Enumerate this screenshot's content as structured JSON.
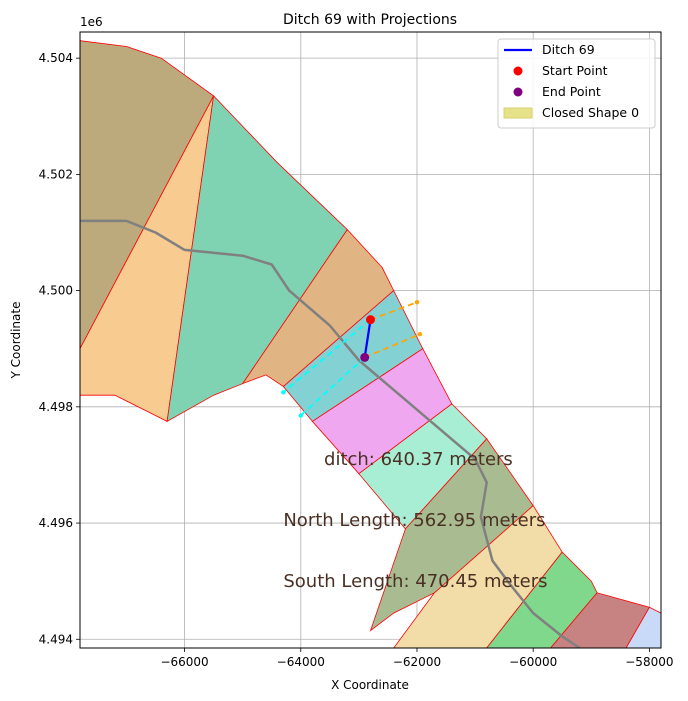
{
  "chart_data": {
    "type": "line",
    "title": "Ditch 69 with Projections",
    "xlabel": "X Coordinate",
    "ylabel": "Y Coordinate",
    "xlim": [
      -67800,
      -57800
    ],
    "ylim": [
      4493850,
      4504450
    ],
    "y_offset_label": "1e6",
    "grid": true,
    "legend_placement": "top-right",
    "x_ticks": [
      {
        "value": -66000,
        "label": "−66000"
      },
      {
        "value": -64000,
        "label": "−64000"
      },
      {
        "value": -62000,
        "label": "−62000"
      },
      {
        "value": -60000,
        "label": "−60000"
      },
      {
        "value": -58000,
        "label": "−58000"
      }
    ],
    "y_ticks": [
      {
        "value": 4494000,
        "label": "4.494"
      },
      {
        "value": 4496000,
        "label": "4.496"
      },
      {
        "value": 4498000,
        "label": "4.498"
      },
      {
        "value": 4500000,
        "label": "4.500"
      },
      {
        "value": 4502000,
        "label": "4.502"
      },
      {
        "value": 4504000,
        "label": "4.504"
      }
    ],
    "legend": [
      {
        "label": "Ditch 69",
        "kind": "line",
        "color": "#0000ff"
      },
      {
        "label": "Start Point",
        "kind": "point",
        "color": "#ff0000"
      },
      {
        "label": "End Point",
        "kind": "point",
        "color": "#800080"
      },
      {
        "label": "Closed Shape 0",
        "kind": "patch",
        "color": "#e6e28a"
      }
    ],
    "shapes": [
      {
        "color": "#bcaa7d",
        "points": [
          [
            -67800,
            4504300
          ],
          [
            -67000,
            4504200
          ],
          [
            -66400,
            4504000
          ],
          [
            -65500,
            4503350
          ],
          [
            -67800,
            4499000
          ]
        ]
      },
      {
        "color": "#f8cb91",
        "points": [
          [
            -65500,
            4503350
          ],
          [
            -67800,
            4499000
          ],
          [
            -67800,
            4498200
          ],
          [
            -67200,
            4498200
          ],
          [
            -66600,
            4497900
          ],
          [
            -66300,
            4497750
          ]
        ]
      },
      {
        "color": "#80d3b2",
        "points": [
          [
            -65500,
            4503350
          ],
          [
            -66300,
            4497750
          ],
          [
            -65500,
            4498200
          ],
          [
            -65000,
            4498400
          ],
          [
            -63200,
            4501050
          ],
          [
            -64400,
            4502200
          ]
        ]
      },
      {
        "color": "#e1b483",
        "points": [
          [
            -63200,
            4501050
          ],
          [
            -65000,
            4498400
          ],
          [
            -64600,
            4498550
          ],
          [
            -64300,
            4498350
          ],
          [
            -62400,
            4500000
          ],
          [
            -62600,
            4500400
          ]
        ]
      },
      {
        "color": "#83d1d3",
        "points": [
          [
            -64300,
            4498350
          ],
          [
            -62400,
            4500000
          ],
          [
            -61900,
            4499000
          ],
          [
            -63800,
            4497750
          ]
        ]
      },
      {
        "color": "#efa8f0",
        "points": [
          [
            -63800,
            4497750
          ],
          [
            -61900,
            4499000
          ],
          [
            -61400,
            4498050
          ],
          [
            -63000,
            4496850
          ]
        ]
      },
      {
        "color": "#a7eed4",
        "points": [
          [
            -63000,
            4496850
          ],
          [
            -61400,
            4498050
          ],
          [
            -60800,
            4497450
          ],
          [
            -62200,
            4495900
          ]
        ]
      },
      {
        "color": "#a9bc91",
        "points": [
          [
            -62200,
            4495900
          ],
          [
            -60800,
            4497450
          ],
          [
            -60000,
            4496300
          ],
          [
            -61000,
            4495350
          ],
          [
            -61700,
            4494800
          ],
          [
            -62400,
            4494450
          ],
          [
            -62800,
            4494150
          ]
        ]
      },
      {
        "color": "#f2dca7",
        "points": [
          [
            -61700,
            4494800
          ],
          [
            -60000,
            4496300
          ],
          [
            -59500,
            4495500
          ],
          [
            -60800,
            4493850
          ],
          [
            -62400,
            4493850
          ]
        ]
      },
      {
        "color": "#7fd88c",
        "points": [
          [
            -60800,
            4493850
          ],
          [
            -59500,
            4495500
          ],
          [
            -59000,
            4495000
          ],
          [
            -58900,
            4494800
          ],
          [
            -59700,
            4493850
          ]
        ]
      },
      {
        "color": "#c78381",
        "points": [
          [
            -59700,
            4493850
          ],
          [
            -58900,
            4494800
          ],
          [
            -58000,
            4494550
          ],
          [
            -58400,
            4493850
          ]
        ]
      },
      {
        "color": "#c8daf7",
        "points": [
          [
            -58400,
            4493850
          ],
          [
            -58000,
            4494550
          ],
          [
            -57800,
            4494450
          ],
          [
            -57800,
            4493850
          ]
        ]
      }
    ],
    "road": {
      "color": "#808080",
      "points": [
        [
          -67800,
          4501200
        ],
        [
          -67000,
          4501200
        ],
        [
          -66500,
          4501000
        ],
        [
          -66000,
          4500700
        ],
        [
          -65000,
          4500600
        ],
        [
          -64500,
          4500450
        ],
        [
          -64200,
          4500000
        ],
        [
          -63500,
          4499400
        ],
        [
          -63000,
          4498800
        ],
        [
          -62000,
          4497950
        ],
        [
          -61000,
          4497100
        ],
        [
          -60800,
          4496700
        ],
        [
          -60900,
          4496100
        ],
        [
          -60700,
          4495350
        ],
        [
          -60400,
          4494950
        ],
        [
          -60000,
          4494450
        ],
        [
          -59500,
          4494050
        ],
        [
          -59200,
          4493850
        ]
      ]
    },
    "ditch": {
      "color": "#0000ff",
      "points": [
        [
          -62800,
          4499500
        ],
        [
          -62900,
          4498850
        ]
      ]
    },
    "start_point": {
      "x": -62800,
      "y": 4499500,
      "color": "#ff0000"
    },
    "end_point": {
      "x": -62900,
      "y": 4498850,
      "color": "#800080"
    },
    "projections": [
      {
        "color": "#ffa500",
        "points": [
          [
            -62800,
            4499500
          ],
          [
            -62000,
            4499800
          ]
        ]
      },
      {
        "color": "#ffa500",
        "points": [
          [
            -62900,
            4498850
          ],
          [
            -61950,
            4499250
          ]
        ]
      },
      {
        "color": "#00ffff",
        "points": [
          [
            -62800,
            4499500
          ],
          [
            -64300,
            4498250
          ]
        ]
      },
      {
        "color": "#00ffff",
        "points": [
          [
            -62900,
            4498850
          ],
          [
            -64000,
            4497850
          ]
        ]
      }
    ],
    "annotations": [
      {
        "text": "ditch: 640.37 meters",
        "x": -63600,
        "y": 4497000
      },
      {
        "text": "North Length: 562.95 meters",
        "x": -64300,
        "y": 4495950
      },
      {
        "text": "South Length: 470.45 meters",
        "x": -64300,
        "y": 4494900
      }
    ]
  }
}
